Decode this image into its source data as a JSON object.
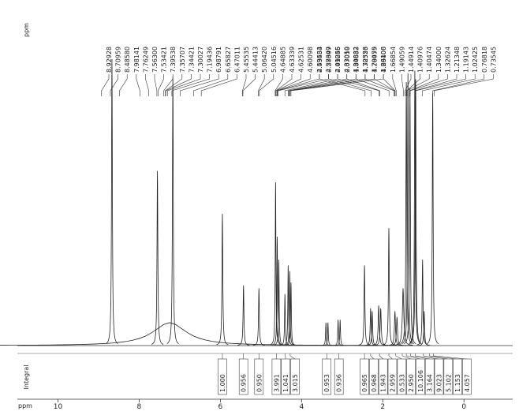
{
  "chart_data": {
    "type": "nmr",
    "x_label": "ppm",
    "top_axis_label": "ppm",
    "integral_label": "Integral",
    "xlim": [
      11,
      -1.2
    ],
    "xticks": [
      10,
      8,
      6,
      4,
      2,
      0
    ],
    "ylim": [
      0,
      100
    ],
    "peaks": {
      "ppm": [
        8.67,
        7.55,
        7.17,
        7.25,
        5.95,
        5.43,
        5.05,
        4.64,
        4.6,
        4.56,
        4.41,
        4.33,
        4.29,
        4.26,
        3.4,
        3.35,
        3.1,
        3.05,
        2.45,
        2.3,
        2.26,
        2.1,
        2.05,
        1.85,
        1.7,
        1.65,
        1.5,
        1.42,
        1.38,
        1.33,
        1.21,
        1.19,
        1.02,
        0.98,
        0.77
      ],
      "height": [
        100,
        61,
        94,
        8,
        46,
        21,
        20,
        57,
        38,
        30,
        18,
        28,
        26,
        22,
        8,
        8,
        9,
        9,
        28,
        13,
        12,
        14,
        13,
        41,
        12,
        10,
        20,
        92,
        95,
        90,
        96,
        93,
        30,
        12,
        88
      ],
      "width": [
        0.012,
        0.012,
        0.012,
        0.5,
        0.012,
        0.012,
        0.012,
        0.01,
        0.01,
        0.01,
        0.01,
        0.01,
        0.01,
        0.01,
        0.01,
        0.01,
        0.01,
        0.01,
        0.012,
        0.012,
        0.012,
        0.015,
        0.015,
        0.012,
        0.015,
        0.015,
        0.02,
        0.012,
        0.012,
        0.012,
        0.012,
        0.012,
        0.012,
        0.012,
        0.012
      ]
    },
    "peak_labels": [
      8.92928,
      8.70959,
      {
        "value": 8.4858,
        "label": "8.48580"
      },
      7.98141,
      7.76249,
      {
        "value": 7.563,
        "label": "7.56300"
      },
      7.53421,
      7.39538,
      7.35707,
      7.34421,
      7.30027,
      7.19436,
      6.98791,
      6.65827,
      6.47011,
      5.45535,
      5.44413,
      {
        "value": 5.0642,
        "label": "5.06420"
      },
      5.04516,
      4.64885,
      4.63339,
      4.62531,
      4.60098,
      4.59433,
      4.57399,
      4.41055,
      4.33019,
      4.30882,
      4.30323,
      4.28055,
      {
        "value": 4.261,
        "label": "4.26100"
      },
      2.43584,
      2.28647,
      2.09246,
      {
        "value": 2.0705,
        "label": "2.07050"
      },
      1.84633,
      1.72556,
      1.70479,
      1.69406,
      1.66854,
      1.49059,
      1.44914,
      1.40976,
      1.40474,
      {
        "value": 1.34,
        "label": "1.34000"
      },
      1.32624,
      1.21348,
      1.19143,
      1.02425,
      0.76818,
      0.73545
    ],
    "integrals": {
      "ppm": [
        5.95,
        5.43,
        5.05,
        4.62,
        4.4,
        4.28,
        3.38,
        3.08,
        2.45,
        2.3,
        2.08,
        1.85,
        1.68,
        1.52,
        1.42,
        1.32,
        1.2,
        1.0,
        0.85,
        0.75
      ],
      "values": [
        1,
        0.956,
        0.95,
        3.991,
        1.041,
        3.015,
        0.953,
        0.936,
        0.965,
        0.968,
        1.943,
        2.959,
        0.533,
        2.95,
        10.106,
        3.164,
        9.023,
        5.102,
        1.153,
        4.057
      ],
      "value_labels": [
        "1.000",
        "0.956",
        "0.950",
        "3.991",
        "1.041",
        "3.015",
        "0.953",
        "0.936",
        "0.965",
        "0.968",
        "1.943",
        "2.959",
        "0.533",
        "2.950",
        "10.106",
        "3.164",
        "9.023",
        "5.102",
        "1.153",
        "4.057"
      ]
    }
  }
}
